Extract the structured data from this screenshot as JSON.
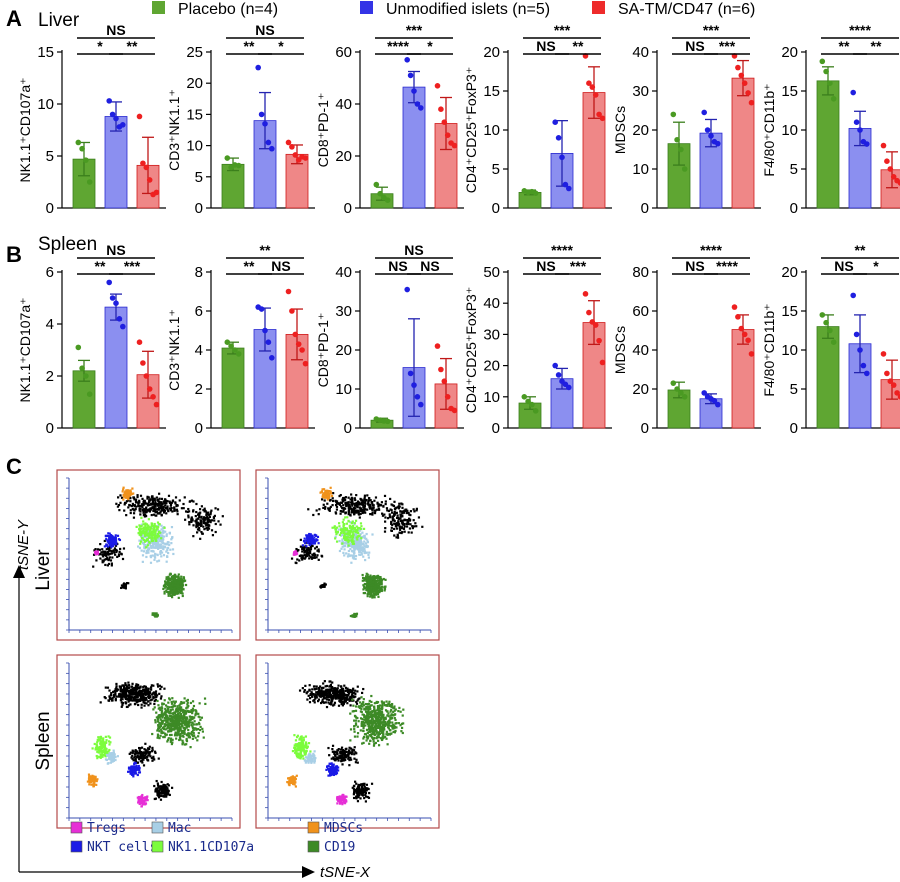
{
  "panel_labels": {
    "A": "A",
    "B": "B",
    "C": "C"
  },
  "row_titles": {
    "liver": "Liver",
    "spleen": "Spleen"
  },
  "legend": [
    {
      "label": "Placebo (n=4)",
      "color": "#5fa632"
    },
    {
      "label": "Unmodified islets (n=5)",
      "color": "#3434e6"
    },
    {
      "label": "SA-TM/CD47 (n=6)",
      "color": "#ee2b2b"
    }
  ],
  "chart_data": [
    {
      "type": "bar",
      "panel": "A",
      "row": "Liver",
      "ylabel": "NK1.1⁺CD107a⁺",
      "ylim": [
        0,
        15
      ],
      "yticks": [
        0,
        5,
        10,
        15
      ],
      "values": [
        4.7,
        8.8,
        4.1
      ],
      "errors": [
        1.6,
        1.4,
        2.7
      ],
      "points": [
        [
          6.3,
          5.7,
          4.6,
          2.5
        ],
        [
          10.3,
          9.0,
          8.6,
          7.8,
          8.0
        ],
        [
          8.8,
          4.3,
          3.9,
          2.7,
          1.3,
          1.5
        ]
      ],
      "sig": [
        {
          "a": 0,
          "b": 1,
          "label": "*",
          "level": 0
        },
        {
          "a": 1,
          "b": 2,
          "label": "**",
          "level": 0
        },
        {
          "a": 0,
          "b": 2,
          "label": "NS",
          "level": 1
        }
      ]
    },
    {
      "type": "bar",
      "panel": "A",
      "row": "Liver",
      "ylabel": "CD3⁺NK1.1⁺",
      "ylim": [
        0,
        25
      ],
      "yticks": [
        0,
        5,
        10,
        15,
        20,
        25
      ],
      "values": [
        7.0,
        14.0,
        8.6
      ],
      "errors": [
        1.0,
        4.5,
        1.5
      ],
      "points": [
        [
          8.0,
          6.5,
          6.9,
          6.8
        ],
        [
          22.5,
          15.0,
          13.5,
          10.5,
          9.5
        ],
        [
          10.5,
          9.8,
          8.5,
          7.7,
          8.2,
          8.0
        ]
      ],
      "sig": [
        {
          "a": 0,
          "b": 1,
          "label": "**",
          "level": 0
        },
        {
          "a": 1,
          "b": 2,
          "label": "*",
          "level": 0
        },
        {
          "a": 0,
          "b": 2,
          "label": "NS",
          "level": 1
        }
      ]
    },
    {
      "type": "bar",
      "panel": "A",
      "row": "Liver",
      "ylabel": "CD8⁺PD-1⁺",
      "ylim": [
        0,
        60
      ],
      "yticks": [
        0,
        20,
        40,
        60
      ],
      "values": [
        5.5,
        46.5,
        32.5
      ],
      "errors": [
        2.5,
        6.0,
        10.0
      ],
      "points": [
        [
          9.0,
          5.5,
          4.0,
          3.0
        ],
        [
          57.0,
          51.0,
          45.0,
          40.0,
          38.5
        ],
        [
          47.0,
          38.0,
          33.0,
          28.0,
          25.0,
          24.0
        ]
      ],
      "sig": [
        {
          "a": 0,
          "b": 1,
          "label": "****",
          "level": 0
        },
        {
          "a": 1,
          "b": 2,
          "label": "*",
          "level": 0
        },
        {
          "a": 0,
          "b": 2,
          "label": "***",
          "level": 1
        }
      ]
    },
    {
      "type": "bar",
      "panel": "A",
      "row": "Liver",
      "ylabel": "CD4⁺CD25⁺FoxP3⁺",
      "ylim": [
        0,
        20
      ],
      "yticks": [
        0,
        5,
        10,
        15,
        20
      ],
      "values": [
        2.0,
        7.0,
        14.8
      ],
      "errors": [
        0.3,
        4.2,
        3.3
      ],
      "points": [
        [
          2.2,
          2.0,
          2.1,
          1.9
        ],
        [
          11.0,
          9.0,
          6.5,
          3.0,
          2.5
        ],
        [
          19.5,
          16.0,
          15.5,
          14.5,
          12.0,
          11.5
        ]
      ],
      "sig": [
        {
          "a": 0,
          "b": 1,
          "label": "NS",
          "level": 0
        },
        {
          "a": 1,
          "b": 2,
          "label": "**",
          "level": 0
        },
        {
          "a": 0,
          "b": 2,
          "label": "***",
          "level": 1
        }
      ]
    },
    {
      "type": "bar",
      "panel": "A",
      "row": "Liver",
      "ylabel": "MDSCs",
      "ylim": [
        0,
        40
      ],
      "yticks": [
        0,
        10,
        20,
        30,
        40
      ],
      "values": [
        16.5,
        19.2,
        33.3
      ],
      "errors": [
        5.5,
        3.5,
        4.5
      ],
      "points": [
        [
          24.0,
          17.5,
          15.0,
          10.0
        ],
        [
          24.5,
          20.0,
          18.5,
          17.0,
          16.5
        ],
        [
          39.0,
          36.0,
          34.0,
          32.0,
          29.5,
          27.0
        ]
      ],
      "sig": [
        {
          "a": 0,
          "b": 1,
          "label": "NS",
          "level": 0
        },
        {
          "a": 1,
          "b": 2,
          "label": "***",
          "level": 0
        },
        {
          "a": 0,
          "b": 2,
          "label": "***",
          "level": 1
        }
      ]
    },
    {
      "type": "bar",
      "panel": "A",
      "row": "Liver",
      "ylabel": "F4/80⁺CD11b⁺",
      "ylim": [
        0,
        20
      ],
      "yticks": [
        0,
        5,
        10,
        15,
        20
      ],
      "values": [
        16.3,
        10.2,
        4.9
      ],
      "errors": [
        1.8,
        2.2,
        2.3
      ],
      "points": [
        [
          18.8,
          17.5,
          16.0,
          14.0
        ],
        [
          14.8,
          11.0,
          10.0,
          8.5,
          8.2
        ],
        [
          8.0,
          6.0,
          5.0,
          4.0,
          3.5,
          3.2
        ]
      ],
      "sig": [
        {
          "a": 0,
          "b": 1,
          "label": "**",
          "level": 0
        },
        {
          "a": 1,
          "b": 2,
          "label": "**",
          "level": 0
        },
        {
          "a": 0,
          "b": 2,
          "label": "****",
          "level": 1
        }
      ]
    },
    {
      "type": "bar",
      "panel": "B",
      "row": "Spleen",
      "ylabel": "NK1.1⁺CD107a⁺",
      "ylim": [
        0,
        6
      ],
      "yticks": [
        0,
        2,
        4,
        6
      ],
      "values": [
        2.2,
        4.65,
        2.05
      ],
      "errors": [
        0.4,
        0.5,
        0.9
      ],
      "points": [
        [
          3.1,
          2.3,
          2.0,
          1.3
        ],
        [
          5.6,
          5.0,
          4.8,
          4.2,
          3.9
        ],
        [
          3.3,
          2.5,
          2.0,
          1.5,
          1.2,
          0.9
        ]
      ],
      "sig": [
        {
          "a": 0,
          "b": 1,
          "label": "**",
          "level": 0
        },
        {
          "a": 1,
          "b": 2,
          "label": "***",
          "level": 0
        },
        {
          "a": 0,
          "b": 2,
          "label": "NS",
          "level": 1
        }
      ]
    },
    {
      "type": "bar",
      "panel": "B",
      "row": "Spleen",
      "ylabel": "CD3⁺NK1.1⁺",
      "ylim": [
        0,
        8
      ],
      "yticks": [
        0,
        2,
        4,
        6,
        8
      ],
      "values": [
        4.1,
        5.05,
        4.8
      ],
      "errors": [
        0.3,
        1.1,
        1.3
      ],
      "points": [
        [
          4.4,
          4.2,
          4.0,
          3.8
        ],
        [
          6.2,
          6.1,
          5.0,
          4.4,
          3.6
        ],
        [
          7.0,
          6.0,
          4.8,
          4.3,
          4.0,
          3.3
        ]
      ],
      "sig": [
        {
          "a": 0,
          "b": 1,
          "label": "**",
          "level": 0
        },
        {
          "a": 1,
          "b": 2,
          "label": "NS",
          "level": 0
        },
        {
          "a": 0,
          "b": 2,
          "label": "**",
          "level": 1
        }
      ]
    },
    {
      "type": "bar",
      "panel": "B",
      "row": "Spleen",
      "ylabel": "CD8⁺PD-1⁺",
      "ylim": [
        0,
        40
      ],
      "yticks": [
        0,
        10,
        20,
        30,
        40
      ],
      "values": [
        2.0,
        15.5,
        11.3
      ],
      "errors": [
        0.5,
        12.5,
        6.5
      ],
      "points": [
        [
          2.3,
          2.0,
          1.8,
          1.7
        ],
        [
          35.5,
          14.0,
          11.0,
          8.0,
          6.0
        ],
        [
          21.0,
          15.0,
          12.0,
          8.0,
          5.0,
          4.5
        ]
      ],
      "sig": [
        {
          "a": 0,
          "b": 1,
          "label": "NS",
          "level": 0
        },
        {
          "a": 1,
          "b": 2,
          "label": "NS",
          "level": 0
        },
        {
          "a": 0,
          "b": 2,
          "label": "NS",
          "level": 1
        }
      ]
    },
    {
      "type": "bar",
      "panel": "B",
      "row": "Spleen",
      "ylabel": "CD4⁺CD25⁺FoxP3⁺",
      "ylim": [
        0,
        50
      ],
      "yticks": [
        0,
        10,
        20,
        30,
        40,
        50
      ],
      "values": [
        8.0,
        15.8,
        33.8
      ],
      "errors": [
        2.0,
        3.3,
        7.0
      ],
      "points": [
        [
          10.0,
          8.5,
          7.5,
          5.5
        ],
        [
          20.0,
          17.0,
          15.0,
          14.0,
          13.0
        ],
        [
          43.0,
          37.0,
          34.0,
          33.0,
          28.0,
          21.0
        ]
      ],
      "sig": [
        {
          "a": 0,
          "b": 1,
          "label": "NS",
          "level": 0
        },
        {
          "a": 1,
          "b": 2,
          "label": "***",
          "level": 0
        },
        {
          "a": 0,
          "b": 2,
          "label": "****",
          "level": 1
        }
      ]
    },
    {
      "type": "bar",
      "panel": "B",
      "row": "Spleen",
      "ylabel": "MDSCs",
      "ylim": [
        0,
        80
      ],
      "yticks": [
        0,
        20,
        40,
        60,
        80
      ],
      "values": [
        19.5,
        15.0,
        50.5
      ],
      "errors": [
        4.0,
        2.5,
        7.5
      ],
      "points": [
        [
          23.0,
          20.0,
          18.0,
          16.0
        ],
        [
          18.0,
          16.0,
          15.0,
          14.0,
          12.0
        ],
        [
          62.0,
          57.0,
          51.0,
          48.0,
          45.0,
          38.0
        ]
      ],
      "sig": [
        {
          "a": 0,
          "b": 1,
          "label": "NS",
          "level": 0
        },
        {
          "a": 1,
          "b": 2,
          "label": "****",
          "level": 0
        },
        {
          "a": 0,
          "b": 2,
          "label": "****",
          "level": 1
        }
      ]
    },
    {
      "type": "bar",
      "panel": "B",
      "row": "Spleen",
      "ylabel": "F4/80⁺CD11b⁺",
      "ylim": [
        0,
        20
      ],
      "yticks": [
        0,
        5,
        10,
        15,
        20
      ],
      "values": [
        13.0,
        10.8,
        6.2
      ],
      "errors": [
        1.5,
        3.7,
        2.5
      ],
      "points": [
        [
          14.5,
          13.5,
          12.5,
          11.0
        ],
        [
          17.0,
          12.0,
          10.0,
          8.0,
          7.0
        ],
        [
          9.5,
          7.0,
          6.0,
          5.5,
          4.5,
          4.0
        ]
      ],
      "sig": [
        {
          "a": 0,
          "b": 1,
          "label": "NS",
          "level": 0
        },
        {
          "a": 1,
          "b": 2,
          "label": "*",
          "level": 0
        },
        {
          "a": 0,
          "b": 2,
          "label": "**",
          "level": 1
        }
      ]
    }
  ],
  "tsne": {
    "y_axis_label": "tSNE-Y",
    "x_axis_label": "tSNE-X",
    "row_labels": [
      "Liver",
      "Spleen"
    ],
    "legend": [
      {
        "label": "Tregs",
        "color": "#e62fd6"
      },
      {
        "label": "Mac",
        "color": "#a8cfe6"
      },
      {
        "label": "MDSCs",
        "color": "#f0921c"
      },
      {
        "label": "NKT cells",
        "color": "#1a1ae6"
      },
      {
        "label": "NK1.1CD107a",
        "color": "#7cfc3c"
      },
      {
        "label": "CD19",
        "color": "#3d8a26"
      }
    ],
    "other_color": "#000000"
  }
}
